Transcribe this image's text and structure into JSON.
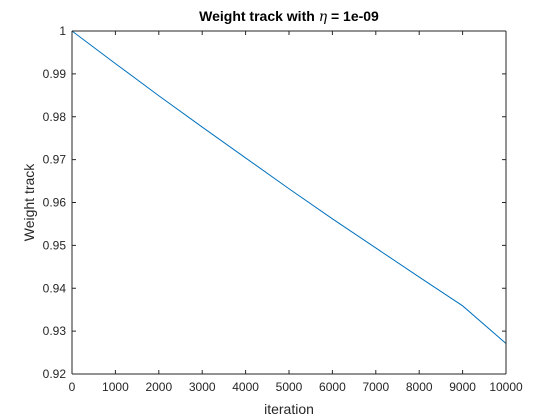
{
  "chart_data": {
    "type": "line",
    "title": {
      "prefix": "Weight track with ",
      "symbol": "η",
      "suffix": " = 1e-09"
    },
    "xlabel": "iteration",
    "ylabel": "Weight track",
    "xlim": [
      0,
      10000
    ],
    "ylim": [
      0.92,
      1.0
    ],
    "xticks": [
      0,
      1000,
      2000,
      3000,
      4000,
      5000,
      6000,
      7000,
      8000,
      9000,
      10000
    ],
    "xtick_labels": [
      "0",
      "1000",
      "2000",
      "3000",
      "4000",
      "5000",
      "6000",
      "7000",
      "8000",
      "9000",
      "10000"
    ],
    "yticks": [
      0.92,
      0.93,
      0.94,
      0.95,
      0.96,
      0.97,
      0.98,
      0.99,
      1.0
    ],
    "ytick_labels": [
      "0.92",
      "0.93",
      "0.94",
      "0.95",
      "0.96",
      "0.97",
      "0.98",
      "0.99",
      "1"
    ],
    "grid": false,
    "series": [
      {
        "color": "#0072bd",
        "x": [
          0,
          1000,
          2000,
          3000,
          4000,
          5000,
          6000,
          7000,
          8000,
          9000,
          10000
        ],
        "y": [
          1.0,
          0.9924,
          0.9849,
          0.9776,
          0.9704,
          0.9632,
          0.9562,
          0.9494,
          0.9426,
          0.9359,
          0.9271
        ]
      }
    ]
  }
}
